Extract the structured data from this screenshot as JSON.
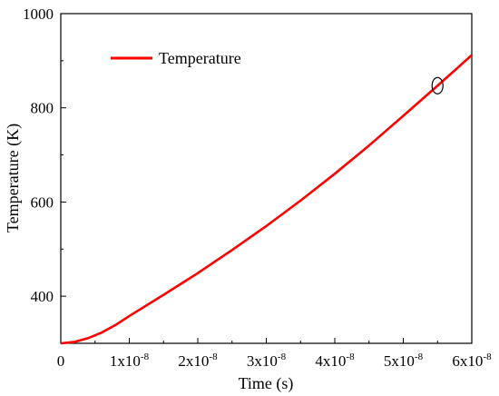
{
  "chart_data": {
    "type": "line",
    "title": "",
    "xlabel": "Time (s)",
    "ylabel": "Temperature (K)",
    "xlim": [
      0,
      6e-08
    ],
    "ylim": [
      300,
      1000
    ],
    "x_ticks": [
      {
        "value": 0,
        "label": "0",
        "sup": ""
      },
      {
        "value": 1e-08,
        "label": "1x10",
        "sup": "-8"
      },
      {
        "value": 2e-08,
        "label": "2x10",
        "sup": "-8"
      },
      {
        "value": 3e-08,
        "label": "3x10",
        "sup": "-8"
      },
      {
        "value": 4e-08,
        "label": "4x10",
        "sup": "-8"
      },
      {
        "value": 5e-08,
        "label": "5x10",
        "sup": "-8"
      },
      {
        "value": 6e-08,
        "label": "6x10",
        "sup": "-8"
      }
    ],
    "y_ticks": [
      {
        "value": 400,
        "label": "400"
      },
      {
        "value": 600,
        "label": "600"
      },
      {
        "value": 800,
        "label": "800"
      },
      {
        "value": 1000,
        "label": "1000"
      }
    ],
    "grid": false,
    "legend_position": "top-left",
    "series": [
      {
        "name": "Temperature",
        "color": "#ff0000",
        "x": [
          0,
          2e-09,
          4e-09,
          6e-09,
          8e-09,
          1e-08,
          1.5e-08,
          2e-08,
          2.5e-08,
          3e-08,
          3.5e-08,
          4e-08,
          4.5e-08,
          5e-08,
          5.5e-08,
          6e-08
        ],
        "y": [
          300,
          303,
          311,
          323,
          339,
          358,
          403,
          449,
          498,
          549,
          603,
          660,
          720,
          783,
          847,
          912
        ]
      }
    ],
    "annotations": [
      {
        "type": "ellipse-marker",
        "x": 5.5e-08,
        "y": 847
      }
    ]
  }
}
